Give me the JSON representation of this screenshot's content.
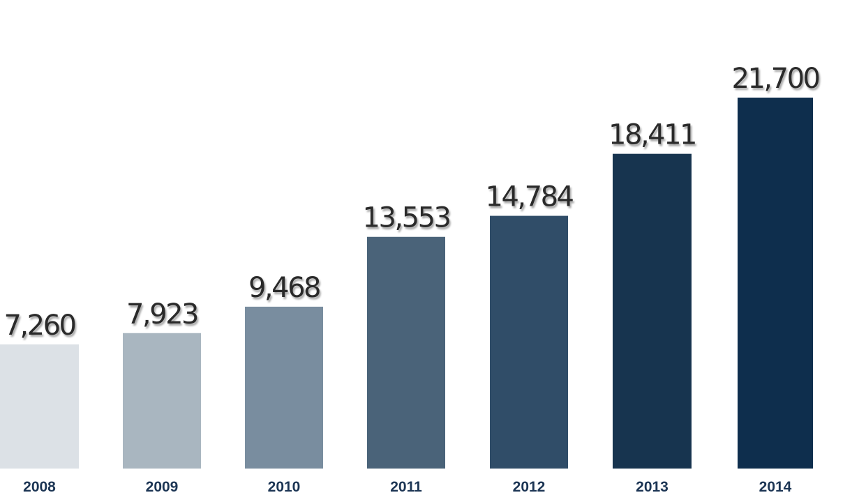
{
  "chart_data": {
    "type": "bar",
    "categories": [
      "2008",
      "2009",
      "2010",
      "2011",
      "2012",
      "2013",
      "2014"
    ],
    "values": [
      7260,
      7923,
      9468,
      13553,
      14784,
      18411,
      21700
    ],
    "value_labels": [
      "7,260",
      "7,923",
      "9,468",
      "13,553",
      "14,784",
      "18,411",
      "21,700"
    ],
    "bar_colors": [
      "#dce1e6",
      "#a9b6c0",
      "#798d9f",
      "#4a6379",
      "#304d68",
      "#17344f",
      "#0e2e4d"
    ],
    "ylim": [
      0,
      21700
    ],
    "grid": false,
    "legend": "none",
    "title": "",
    "xlabel": "",
    "ylabel": ""
  },
  "colors": {
    "category_text": "#1c3554",
    "value_text": "#2b2b2b"
  }
}
